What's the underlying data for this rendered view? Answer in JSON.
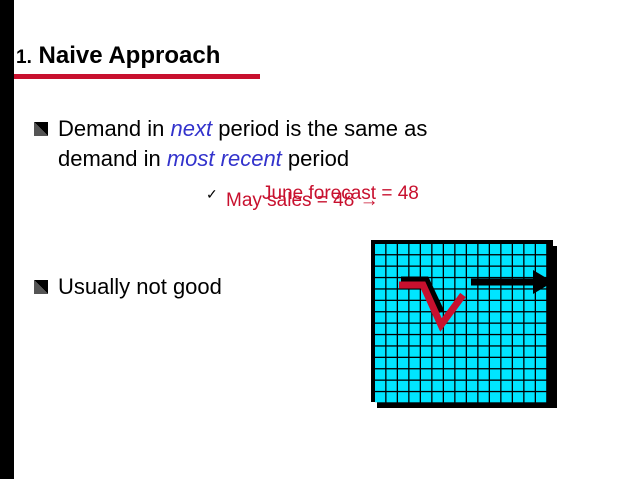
{
  "title": {
    "number": "1.",
    "text": "Naive Approach"
  },
  "bullets": [
    {
      "prefix": "Demand in ",
      "em1": "next",
      "middle": " period is the same as"
    },
    {
      "prefix": "demand in ",
      "em2": "most recent",
      "suffix": " period"
    },
    {
      "text": "Usually not good"
    }
  ],
  "check_item": {
    "may_sales": "May sales = 48 →",
    "june_forecast": "June forecast = 48"
  },
  "colors": {
    "accent": "#3333cc",
    "red": "#c8102e",
    "grid": "#00e5ff",
    "left_bar": "#000000"
  },
  "icons": [
    "square-bullet-icon",
    "checkmark-icon",
    "arrow-right-icon"
  ]
}
